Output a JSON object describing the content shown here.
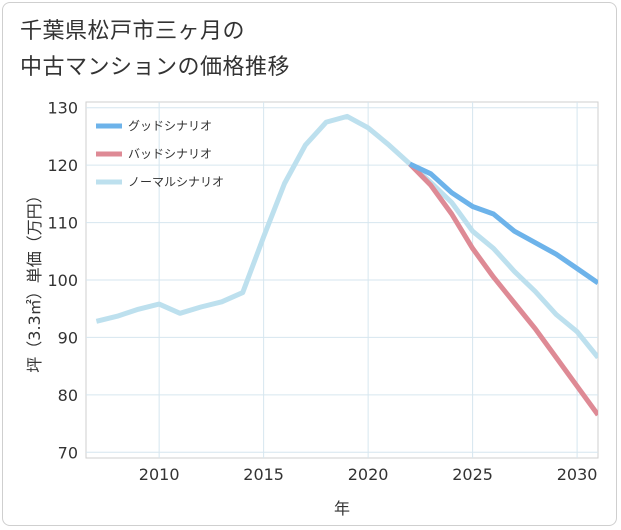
{
  "title_lines": [
    "千葉県松戸市三ヶ月の",
    "中古マンションの価格推移"
  ],
  "chart_data": {
    "type": "line",
    "title": "千葉県松戸市三ヶ月の中古マンションの価格推移",
    "xlabel": "年",
    "ylabel": "坪（3.3㎡）単価（万円）",
    "xlim": [
      2006.5,
      2031
    ],
    "ylim": [
      69,
      131
    ],
    "xticks": [
      2010,
      2015,
      2020,
      2025,
      2030
    ],
    "yticks": [
      70,
      80,
      90,
      100,
      110,
      120,
      130
    ],
    "legend_position": "top-left",
    "series": [
      {
        "name": "グッドシナリオ",
        "color": "#6db3ea",
        "x": [
          2022,
          2023,
          2024,
          2025,
          2026,
          2027,
          2028,
          2029,
          2030,
          2031
        ],
        "values": [
          120.2,
          118.5,
          115.2,
          112.8,
          111.5,
          108.5,
          106.5,
          104.5,
          102.0,
          99.5
        ]
      },
      {
        "name": "バッドシナリオ",
        "color": "#de8a95",
        "x": [
          2022,
          2023,
          2024,
          2025,
          2026,
          2027,
          2028,
          2029,
          2030,
          2031
        ],
        "values": [
          120.2,
          116.5,
          111.5,
          105.5,
          100.5,
          96.0,
          91.5,
          86.5,
          81.5,
          76.5
        ]
      },
      {
        "name": "ノーマルシナリオ",
        "color": "#bde0ee",
        "x": [
          2007,
          2008,
          2009,
          2010,
          2011,
          2012,
          2013,
          2014,
          2015,
          2016,
          2017,
          2018,
          2019,
          2020,
          2021,
          2022,
          2023,
          2024,
          2025,
          2026,
          2027,
          2028,
          2029,
          2030,
          2031
        ],
        "values": [
          92.8,
          93.7,
          94.9,
          95.8,
          94.2,
          95.3,
          96.2,
          97.8,
          107.5,
          116.8,
          123.5,
          127.5,
          128.5,
          126.5,
          123.5,
          120.2,
          117.0,
          113.5,
          108.5,
          105.5,
          101.5,
          98.0,
          94.0,
          91.0,
          86.5
        ]
      }
    ]
  }
}
